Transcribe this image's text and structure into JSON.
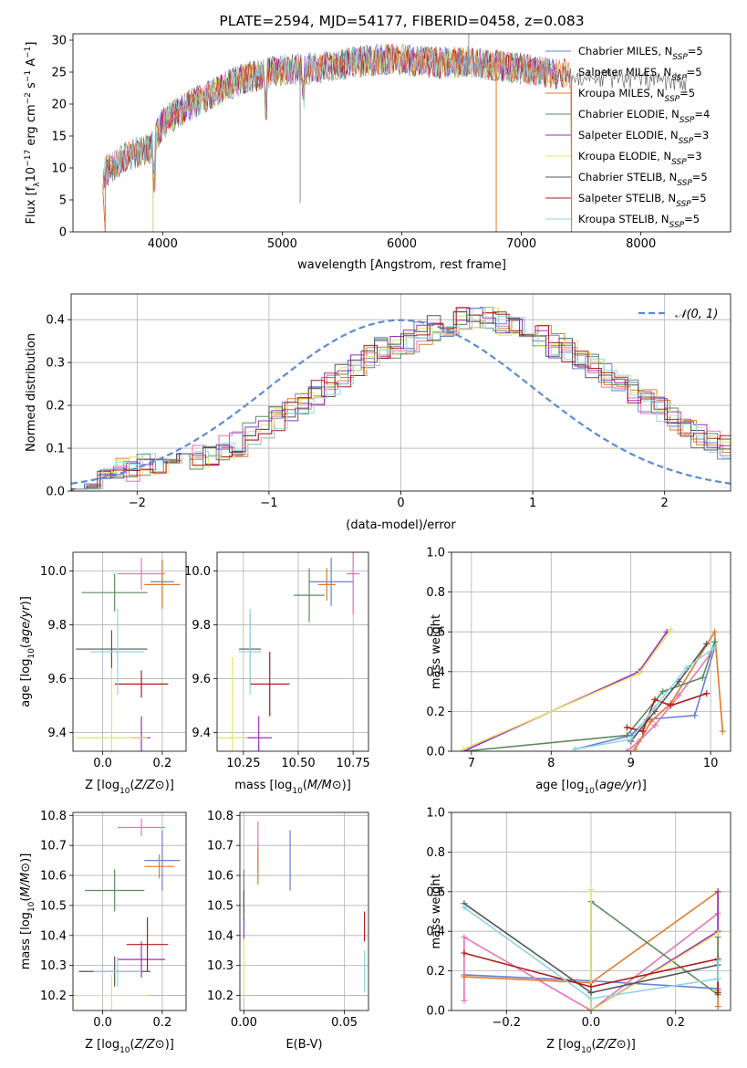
{
  "chart_data": [
    {
      "type": "line",
      "title": "PLATE=2594, MJD=54177, FIBERID=0458, z=0.083",
      "xlabel": "wavelength [Angstrom, rest frame]",
      "ylabel": "Flux [fλ10⁻¹⁷ erg cm⁻² s⁻¹ A⁻¹]",
      "xlim": [
        3250,
        8750
      ],
      "ylim": [
        0,
        31
      ],
      "xticks": [
        "4000",
        "5000",
        "6000",
        "7000",
        "8000"
      ],
      "yticks": [
        "0",
        "5",
        "10",
        "15",
        "20",
        "25",
        "30"
      ],
      "grid": false,
      "legend": "top-right",
      "series": [
        {
          "name": "Chabrier MILES, N_SSP=5",
          "color": "#6a7fd3"
        },
        {
          "name": "Salpeter MILES, N_SSP=5",
          "color": "#e573b8"
        },
        {
          "name": "Kroupa MILES, N_SSP=5",
          "color": "#e07a2a"
        },
        {
          "name": "Chabrier ELODIE, N_SSP=4",
          "color": "#5e8b5e"
        },
        {
          "name": "Salpeter ELODIE, N_SSP=3",
          "color": "#9a2ec4"
        },
        {
          "name": "Kroupa ELODIE, N_SSP=3",
          "color": "#e3e36a"
        },
        {
          "name": "Chabrier STELIB, N_SSP=5",
          "color": "#555555"
        },
        {
          "name": "Salpeter STELIB, N_SSP=5",
          "color": "#b01b1b"
        },
        {
          "name": "Kroupa STELIB, N_SSP=5",
          "color": "#8fd6e0"
        }
      ],
      "continuum": {
        "x": [
          3500,
          3700,
          3900,
          4000,
          4200,
          4400,
          4600,
          4800,
          5000,
          5200,
          5400,
          5600,
          5800,
          6000,
          6200,
          6400,
          6600,
          6800,
          7000,
          7200,
          7400
        ],
        "y": [
          9,
          12,
          13,
          17,
          19.5,
          21.5,
          23.5,
          24.5,
          25.5,
          25.5,
          26,
          26.5,
          27,
          27,
          26.5,
          26.5,
          26.5,
          26,
          25.5,
          25,
          24.5
        ]
      }
    },
    {
      "type": "bar",
      "xlabel": "(data-model)/error",
      "ylabel": "Normed distribution",
      "xlim": [
        -2.5,
        2.5
      ],
      "ylim": [
        0,
        0.46
      ],
      "xticks": [
        "−2",
        "−1",
        "0",
        "1",
        "2"
      ],
      "yticks": [
        "0.0",
        "0.1",
        "0.2",
        "0.3",
        "0.4"
      ],
      "grid": true,
      "legend": "top-right",
      "legend_label": "𝒩(0, 1)",
      "bin_width": 0.1,
      "bin_start": -2.5,
      "base_values": [
        0.02,
        0.03,
        0.04,
        0.05,
        0.05,
        0.06,
        0.06,
        0.07,
        0.08,
        0.08,
        0.09,
        0.1,
        0.11,
        0.13,
        0.15,
        0.17,
        0.19,
        0.21,
        0.23,
        0.25,
        0.27,
        0.29,
        0.31,
        0.33,
        0.34,
        0.35,
        0.37,
        0.38,
        0.39,
        0.4,
        0.4,
        0.4,
        0.39,
        0.38,
        0.37,
        0.36,
        0.34,
        0.33,
        0.31,
        0.29,
        0.27,
        0.25,
        0.23,
        0.21,
        0.19,
        0.17,
        0.15,
        0.13,
        0.11,
        0.1,
        0.09
      ]
    },
    {
      "type": "scatter",
      "xlabel": "Z [log₁₀(Z/Z⊙)]",
      "ylabel": "age  [log₁₀(age/yr)]",
      "xlim": [
        -0.1,
        0.28
      ],
      "ylim": [
        9.33,
        10.07
      ],
      "xticks": [
        "0.0",
        "0.2"
      ],
      "yticks": [
        "9.4",
        "9.6",
        "9.8",
        "10.0"
      ],
      "grid": true,
      "points": [
        {
          "x": 0.2,
          "y": 9.96,
          "xe": 0.04,
          "ye": 0.08,
          "c": 0
        },
        {
          "x": 0.13,
          "y": 9.99,
          "xe": 0.08,
          "ye": 0.06,
          "c": 1
        },
        {
          "x": 0.2,
          "y": 9.95,
          "xe": 0.06,
          "ye": 0.09,
          "c": 2
        },
        {
          "x": 0.04,
          "y": 9.92,
          "xe": 0.11,
          "ye": 0.07,
          "c": 3
        },
        {
          "x": 0.13,
          "y": 9.38,
          "xe": 0.03,
          "ye": 0.08,
          "c": 4
        },
        {
          "x": 0.03,
          "y": 9.38,
          "xe": 0.12,
          "ye": 0.3,
          "c": 5
        },
        {
          "x": 0.03,
          "y": 9.71,
          "xe": 0.12,
          "ye": 0.07,
          "c": 6
        },
        {
          "x": 0.13,
          "y": 9.58,
          "xe": 0.09,
          "ye": 0.05,
          "c": 7
        },
        {
          "x": 0.05,
          "y": 9.7,
          "xe": 0.09,
          "ye": 0.16,
          "c": 8
        }
      ]
    },
    {
      "type": "scatter",
      "xlabel": "mass [log₁₀(M/M⊙)]",
      "ylabel": "",
      "xlim": [
        10.13,
        10.82
      ],
      "ylim": [
        9.33,
        10.07
      ],
      "xticks": [
        "10.25",
        "10.50",
        "10.75"
      ],
      "yticks": [
        "9.4",
        "9.6",
        "9.8",
        "10.0"
      ],
      "grid": true,
      "points": [
        {
          "x": 10.65,
          "y": 9.96,
          "xe": 0.1,
          "ye": 0.09,
          "c": 0
        },
        {
          "x": 10.75,
          "y": 9.99,
          "xe": 0.03,
          "ye": 0.15,
          "c": 1
        },
        {
          "x": 10.63,
          "y": 9.95,
          "xe": 0.04,
          "ye": 0.06,
          "c": 2
        },
        {
          "x": 10.55,
          "y": 9.91,
          "xe": 0.07,
          "ye": 0.1,
          "c": 3
        },
        {
          "x": 10.32,
          "y": 9.38,
          "xe": 0.06,
          "ye": 0.08,
          "c": 4
        },
        {
          "x": 10.2,
          "y": 9.38,
          "xe": 0.07,
          "ye": 0.3,
          "c": 5
        },
        {
          "x": 10.28,
          "y": 9.71,
          "xe": 0.05,
          "ye": 0.13,
          "c": 6
        },
        {
          "x": 10.37,
          "y": 9.58,
          "xe": 0.09,
          "ye": 0.12,
          "c": 7
        },
        {
          "x": 10.28,
          "y": 9.7,
          "xe": 0.05,
          "ye": 0.16,
          "c": 8
        }
      ]
    },
    {
      "type": "line",
      "xlabel": "age  [log₁₀(age/yr)]",
      "ylabel": "mass weight",
      "xlim": [
        6.75,
        10.25
      ],
      "ylim": [
        0,
        1.0
      ],
      "xticks": [
        "7",
        "8",
        "9",
        "10"
      ],
      "yticks": [
        "0.0",
        "0.2",
        "0.4",
        "0.6",
        "0.8",
        "1.0"
      ],
      "grid": true,
      "series": [
        {
          "c": 0,
          "x": [
            8.3,
            9.0,
            9.2,
            9.8,
            10.05
          ],
          "y": [
            0.01,
            0.08,
            0.16,
            0.18,
            0.52
          ]
        },
        {
          "c": 1,
          "x": [
            8.95,
            9.1,
            9.3,
            9.6,
            10.0
          ],
          "y": [
            0.0,
            0.05,
            0.13,
            0.28,
            0.49
          ]
        },
        {
          "c": 2,
          "x": [
            9.05,
            9.25,
            9.5,
            10.05,
            10.15
          ],
          "y": [
            0.01,
            0.15,
            0.24,
            0.6,
            0.1
          ]
        },
        {
          "c": 3,
          "x": [
            6.9,
            8.95,
            9.4,
            9.9,
            10.05
          ],
          "y": [
            0.0,
            0.08,
            0.3,
            0.37,
            0.55
          ]
        },
        {
          "c": 4,
          "x": [
            6.9,
            9.1,
            9.45
          ],
          "y": [
            0.0,
            0.4,
            0.6
          ]
        },
        {
          "c": 5,
          "x": [
            6.9,
            9.1,
            9.5
          ],
          "y": [
            0.01,
            0.39,
            0.61
          ]
        },
        {
          "c": 6,
          "x": [
            9.0,
            9.3,
            9.6,
            9.95
          ],
          "y": [
            0.05,
            0.2,
            0.35,
            0.54
          ]
        },
        {
          "c": 7,
          "x": [
            8.95,
            9.15,
            9.3,
            9.5,
            9.95
          ],
          "y": [
            0.12,
            0.1,
            0.26,
            0.23,
            0.29
          ]
        },
        {
          "c": 8,
          "x": [
            8.3,
            9.0,
            9.3,
            9.7,
            10.05
          ],
          "y": [
            0.01,
            0.06,
            0.22,
            0.42,
            0.52
          ]
        }
      ]
    },
    {
      "type": "scatter",
      "xlabel": "Z [log₁₀(Z/Z⊙)]",
      "ylabel": "mass [log₁₀(M/M⊙)]",
      "xlim": [
        -0.1,
        0.28
      ],
      "ylim": [
        10.15,
        10.81
      ],
      "xticks": [
        "0.0",
        "0.2"
      ],
      "yticks": [
        "10.2",
        "10.3",
        "10.4",
        "10.5",
        "10.6",
        "10.7",
        "10.8"
      ],
      "grid": true,
      "points": [
        {
          "x": 0.2,
          "y": 10.65,
          "xe": 0.06,
          "ye": 0.1,
          "c": 0
        },
        {
          "x": 0.13,
          "y": 10.76,
          "xe": 0.08,
          "ye": 0.03,
          "c": 1
        },
        {
          "x": 0.19,
          "y": 10.63,
          "xe": 0.05,
          "ye": 0.04,
          "c": 2
        },
        {
          "x": 0.04,
          "y": 10.55,
          "xe": 0.1,
          "ye": 0.07,
          "c": 3
        },
        {
          "x": 0.13,
          "y": 10.32,
          "xe": 0.08,
          "ye": 0.06,
          "c": 4
        },
        {
          "x": 0.03,
          "y": 10.2,
          "xe": 0.12,
          "ye": 0.07,
          "c": 5
        },
        {
          "x": 0.04,
          "y": 10.28,
          "xe": 0.12,
          "ye": 0.05,
          "c": 6
        },
        {
          "x": 0.15,
          "y": 10.37,
          "xe": 0.07,
          "ye": 0.09,
          "c": 7
        },
        {
          "x": 0.05,
          "y": 10.28,
          "xe": 0.08,
          "ye": 0.05,
          "c": 8
        }
      ]
    },
    {
      "type": "scatter",
      "xlabel": "E(B-V)",
      "ylabel": "",
      "xlim": [
        -0.002,
        0.062
      ],
      "ylim": [
        10.15,
        10.81
      ],
      "xticks": [
        "0.00",
        "0.05"
      ],
      "yticks": [
        "10.2",
        "10.3",
        "10.4",
        "10.5",
        "10.6",
        "10.7",
        "10.8"
      ],
      "grid": true,
      "points": [
        {
          "x": 0.023,
          "y": 10.65,
          "xe": 0,
          "ye": 0.1,
          "c": 0
        },
        {
          "x": 0.007,
          "y": 10.7,
          "xe": 0,
          "ye": 0.08,
          "c": 1
        },
        {
          "x": 0.007,
          "y": 10.63,
          "xe": 0,
          "ye": 0.06,
          "c": 2
        },
        {
          "x": 0.0,
          "y": 10.55,
          "xe": 0,
          "ye": 0.07,
          "c": 3
        },
        {
          "x": 0.0,
          "y": 10.42,
          "xe": 0,
          "ye": 0.04,
          "c": 4
        },
        {
          "x": 0.0,
          "y": 10.29,
          "xe": 0,
          "ye": 0.1,
          "c": 5
        },
        {
          "x": 0.0,
          "y": 10.5,
          "xe": 0,
          "ye": 0.05,
          "c": 6
        },
        {
          "x": 0.06,
          "y": 10.43,
          "xe": 0,
          "ye": 0.05,
          "c": 7
        },
        {
          "x": 0.06,
          "y": 10.28,
          "xe": 0,
          "ye": 0.07,
          "c": 8
        }
      ]
    },
    {
      "type": "line",
      "xlabel": "Z [log₁₀(Z/Z⊙)]",
      "ylabel": "mass weight",
      "xlim": [
        -0.33,
        0.33
      ],
      "ylim": [
        0,
        1.0
      ],
      "xticks": [
        "−0.2",
        "0.0",
        "0.2"
      ],
      "yticks": [
        "0.0",
        "0.2",
        "0.4",
        "0.6",
        "0.8",
        "1.0"
      ],
      "grid": true,
      "series": [
        {
          "c": 0,
          "x": [
            -0.3,
            0.0,
            0.3,
            0.3
          ],
          "y": [
            0.18,
            0.15,
            0.11,
            0.16
          ]
        },
        {
          "c": 1,
          "x": [
            -0.3,
            -0.3,
            0.0,
            0.3
          ],
          "y": [
            0.05,
            0.37,
            0.0,
            0.49
          ]
        },
        {
          "c": 2,
          "x": [
            -0.3,
            0.0,
            0.3,
            0.3,
            0.3
          ],
          "y": [
            0.17,
            0.14,
            0.6,
            0.1,
            0.02
          ]
        },
        {
          "c": 3,
          "x": [
            0.0,
            0.0,
            0.3,
            0.3
          ],
          "y": [
            0.0,
            0.55,
            0.08,
            0.37
          ]
        },
        {
          "c": 4,
          "x": [
            0.0,
            0.3,
            0.3
          ],
          "y": [
            0.0,
            0.4,
            0.6
          ]
        },
        {
          "c": 5,
          "x": [
            0.0,
            0.0,
            0.3
          ],
          "y": [
            0.61,
            0.0,
            0.39
          ]
        },
        {
          "c": 6,
          "x": [
            -0.3,
            0.0,
            0.3
          ],
          "y": [
            0.54,
            0.09,
            0.23
          ]
        },
        {
          "c": 7,
          "x": [
            -0.3,
            0.0,
            0.3,
            0.3
          ],
          "y": [
            0.29,
            0.12,
            0.26,
            0.09
          ]
        },
        {
          "c": 8,
          "x": [
            -0.3,
            0.0,
            0.3,
            0.3
          ],
          "y": [
            0.52,
            0.06,
            0.16,
            0.25
          ]
        }
      ]
    }
  ]
}
